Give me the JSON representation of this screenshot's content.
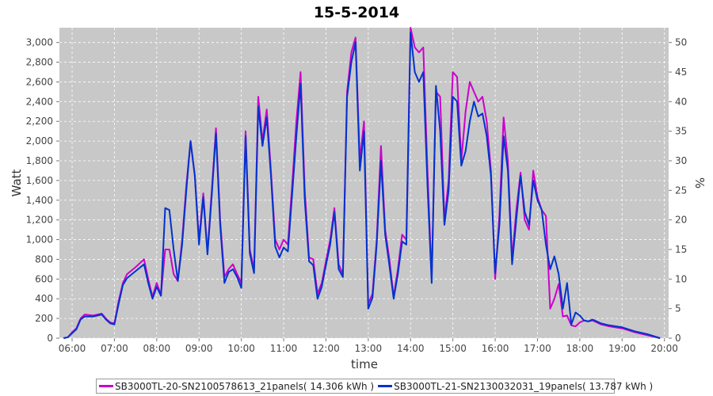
{
  "chart_data": {
    "type": "line",
    "title": "15-5-2014",
    "xlabel": "time",
    "ylabel": "Watt",
    "y2label": "%",
    "xlim": [
      5.7,
      20.1
    ],
    "ylim": [
      0,
      3150
    ],
    "y2lim": [
      0,
      52.5
    ],
    "grid": true,
    "legend_position": "bottom",
    "x_ticks": [
      "06:00",
      "07:00",
      "08:00",
      "09:00",
      "10:00",
      "11:00",
      "12:00",
      "13:00",
      "14:00",
      "15:00",
      "16:00",
      "17:00",
      "18:00",
      "19:00",
      "20:00"
    ],
    "y_ticks": [
      "0",
      "200",
      "400",
      "600",
      "800",
      "1,000",
      "1,200",
      "1,400",
      "1,600",
      "1,800",
      "2,000",
      "2,200",
      "2,400",
      "2,600",
      "2,800",
      "3,000"
    ],
    "y2_ticks": [
      "0",
      "5",
      "10",
      "15",
      "20",
      "25",
      "30",
      "35",
      "40",
      "45",
      "50"
    ],
    "x_hours": [
      5.8,
      5.9,
      6.0,
      6.1,
      6.2,
      6.3,
      6.5,
      6.7,
      6.8,
      6.9,
      7.0,
      7.1,
      7.2,
      7.3,
      7.5,
      7.7,
      7.8,
      7.9,
      8.0,
      8.1,
      8.2,
      8.3,
      8.4,
      8.5,
      8.6,
      8.7,
      8.8,
      8.9,
      9.0,
      9.1,
      9.2,
      9.3,
      9.4,
      9.5,
      9.6,
      9.7,
      9.8,
      9.9,
      10.0,
      10.1,
      10.2,
      10.3,
      10.4,
      10.5,
      10.6,
      10.7,
      10.8,
      10.9,
      11.0,
      11.1,
      11.2,
      11.3,
      11.4,
      11.5,
      11.6,
      11.7,
      11.8,
      11.9,
      12.0,
      12.1,
      12.2,
      12.3,
      12.4,
      12.5,
      12.6,
      12.7,
      12.8,
      12.9,
      13.0,
      13.1,
      13.2,
      13.3,
      13.4,
      13.5,
      13.6,
      13.7,
      13.8,
      13.9,
      14.0,
      14.1,
      14.2,
      14.3,
      14.4,
      14.5,
      14.6,
      14.7,
      14.8,
      14.9,
      15.0,
      15.1,
      15.2,
      15.3,
      15.4,
      15.5,
      15.6,
      15.7,
      15.8,
      15.9,
      16.0,
      16.1,
      16.2,
      16.3,
      16.4,
      16.5,
      16.6,
      16.7,
      16.8,
      16.9,
      17.0,
      17.1,
      17.2,
      17.3,
      17.4,
      17.5,
      17.6,
      17.7,
      17.8,
      17.9,
      18.0,
      18.1,
      18.2,
      18.3,
      18.5,
      18.7,
      19.0,
      19.3,
      19.6,
      19.9
    ],
    "series": [
      {
        "name": "SB3000TL-20-SN2100578613_21panels( 14.306 kWh )",
        "color": "#cc00cc",
        "values": [
          0,
          10,
          60,
          100,
          200,
          240,
          230,
          250,
          200,
          160,
          150,
          380,
          560,
          650,
          720,
          800,
          600,
          420,
          560,
          440,
          900,
          900,
          650,
          580,
          1000,
          1550,
          2000,
          1650,
          1000,
          1470,
          870,
          1500,
          2130,
          1200,
          620,
          700,
          750,
          650,
          560,
          2100,
          900,
          700,
          2450,
          2000,
          2320,
          1700,
          1000,
          900,
          1000,
          950,
          1550,
          2200,
          2700,
          1500,
          820,
          800,
          450,
          560,
          780,
          1000,
          1320,
          750,
          650,
          2500,
          2900,
          3050,
          1800,
          2200,
          350,
          450,
          1000,
          1950,
          1100,
          800,
          420,
          700,
          1050,
          1000,
          3150,
          2950,
          2900,
          2950,
          1700,
          600,
          2500,
          2450,
          1200,
          1600,
          2700,
          2650,
          1800,
          2300,
          2600,
          2500,
          2400,
          2450,
          2200,
          1700,
          600,
          1250,
          2240,
          1800,
          800,
          1300,
          1680,
          1200,
          1100,
          1700,
          1430,
          1300,
          1240,
          300,
          400,
          550,
          220,
          230,
          130,
          120,
          160,
          180,
          170,
          180,
          140,
          120,
          100,
          60,
          30,
          0
        ]
      },
      {
        "name": "SB3000TL-21-SN2130032031_19panels( 13.787 kWh )",
        "color": "#0033cc",
        "values": [
          0,
          10,
          50,
          90,
          190,
          220,
          220,
          240,
          190,
          150,
          140,
          350,
          540,
          610,
          680,
          750,
          560,
          400,
          520,
          430,
          1320,
          1300,
          900,
          580,
          950,
          1500,
          2000,
          1650,
          950,
          1430,
          850,
          1450,
          2080,
          1150,
          560,
          670,
          700,
          620,
          510,
          2050,
          860,
          660,
          2350,
          1950,
          2240,
          1650,
          930,
          820,
          920,
          880,
          1450,
          2050,
          2580,
          1400,
          780,
          740,
          400,
          520,
          740,
          950,
          1280,
          700,
          620,
          2450,
          2800,
          3000,
          1700,
          2100,
          300,
          410,
          950,
          1800,
          1050,
          740,
          400,
          650,
          980,
          950,
          3100,
          2700,
          2600,
          2700,
          1550,
          560,
          2560,
          2100,
          1150,
          1500,
          2450,
          2400,
          1750,
          1900,
          2200,
          2400,
          2250,
          2280,
          2050,
          1650,
          660,
          1150,
          2050,
          1700,
          750,
          1200,
          1650,
          1280,
          1150,
          1600,
          1400,
          1300,
          950,
          700,
          830,
          650,
          300,
          560,
          140,
          260,
          230,
          180,
          170,
          190,
          150,
          130,
          110,
          70,
          40,
          0
        ]
      }
    ]
  }
}
